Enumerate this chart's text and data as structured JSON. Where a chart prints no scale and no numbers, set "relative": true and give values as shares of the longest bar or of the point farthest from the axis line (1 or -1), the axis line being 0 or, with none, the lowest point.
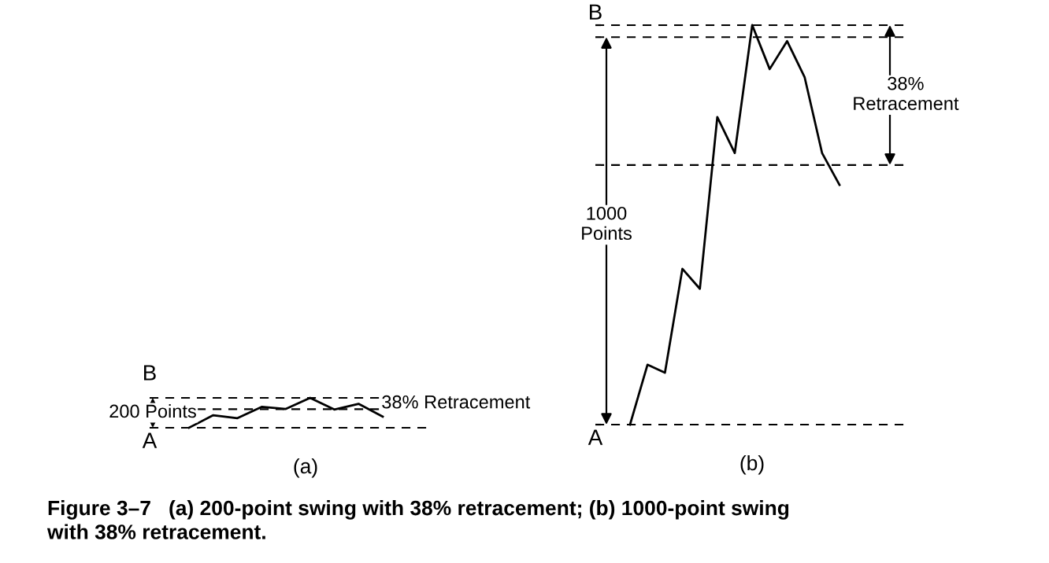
{
  "chart_data": [
    {
      "type": "line",
      "relative": true,
      "marker": "none",
      "line_style": "solid",
      "categories": [
        null,
        null,
        null,
        null,
        null,
        null,
        null,
        null,
        null
      ],
      "series": [
        {
          "color": "#000000",
          "values": [
            0,
            0.42,
            0.32,
            0.7,
            0.63,
            1,
            0.61,
            0.8,
            0.37
          ]
        }
      ],
      "ref_lines": [
        {
          "axis": "y",
          "value": 0,
          "label": "A",
          "line_style": "dashed"
        },
        {
          "axis": "y",
          "value": 1,
          "label": "B",
          "line_style": "dashed"
        },
        {
          "axis": "y",
          "value": 0.62,
          "label": null,
          "line_style": "dashed"
        }
      ],
      "annotations": [
        "200 Points",
        "38% Retracement",
        "(a)",
        "Figure 3–7   (a) 200-point swing with 38% retracement; (b) 1000-point swing\nwith 38% retracement."
      ]
    },
    {
      "type": "line",
      "relative": true,
      "marker": "none",
      "line_style": "solid",
      "categories": [
        null,
        null,
        null,
        null,
        null,
        null,
        null,
        null,
        null,
        null,
        null,
        null,
        null
      ],
      "series": [
        {
          "color": "#000000",
          "values": [
            0,
            0.15,
            0.13,
            0.39,
            0.34,
            0.77,
            0.68,
            1,
            0.89,
            0.96,
            0.87,
            0.68,
            0.6
          ]
        }
      ],
      "ref_lines": [
        {
          "axis": "y",
          "value": 0,
          "label": "A",
          "line_style": "dashed"
        },
        {
          "axis": "y",
          "value": 0.97,
          "label": "B",
          "line_style": "dashed"
        },
        {
          "axis": "y",
          "value": 1,
          "label": null,
          "line_style": "dashed"
        },
        {
          "axis": "y",
          "value": 0.65,
          "label": null,
          "line_style": "dashed"
        }
      ],
      "annotations": [
        "1000\nPoints",
        "38%\nRetracement",
        "(b)"
      ]
    }
  ]
}
